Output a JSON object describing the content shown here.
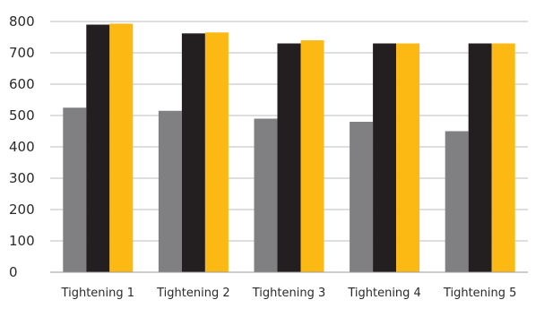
{
  "chart_data": {
    "type": "bar",
    "categories": [
      "Tightening 1",
      "Tightening 2",
      "Tightening 3",
      "Tightening 4",
      "Tightening 5"
    ],
    "series": [
      {
        "values": [
          525,
          515,
          490,
          480,
          450
        ],
        "color": "#808083"
      },
      {
        "values": [
          790,
          762,
          730,
          730,
          730
        ],
        "color": "#231f20"
      },
      {
        "values": [
          793,
          765,
          740,
          730,
          730
        ],
        "color": "#fdb913"
      }
    ],
    "ylim": [
      0,
      800
    ],
    "yticks": [
      0,
      100,
      200,
      300,
      400,
      500,
      600,
      700,
      800
    ],
    "grid": true,
    "legend": "none",
    "title": "",
    "xlabel": "",
    "ylabel": ""
  }
}
